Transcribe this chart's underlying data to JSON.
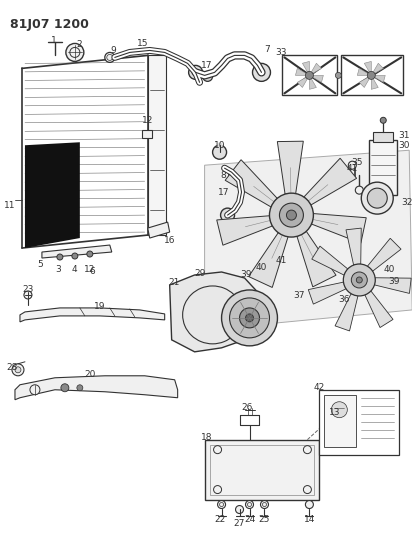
{
  "title": "81J07 1200",
  "bg_color": "#ffffff",
  "lc": "#333333",
  "fs": 6.5,
  "fs_title": 9
}
